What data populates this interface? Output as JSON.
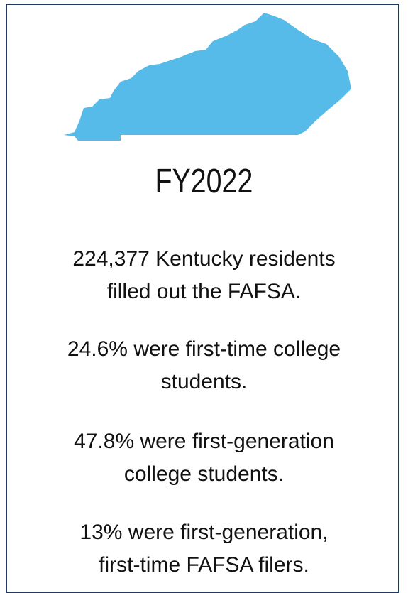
{
  "title": "FY2022",
  "facts": [
    [
      "224,377 Kentucky residents",
      "filled out the FAFSA."
    ],
    [
      "24.6% were first-time college",
      "students."
    ],
    [
      "47.8% were first-generation",
      "college students."
    ],
    [
      "13% were first-generation,",
      "first-time FAFSA filers."
    ]
  ]
}
